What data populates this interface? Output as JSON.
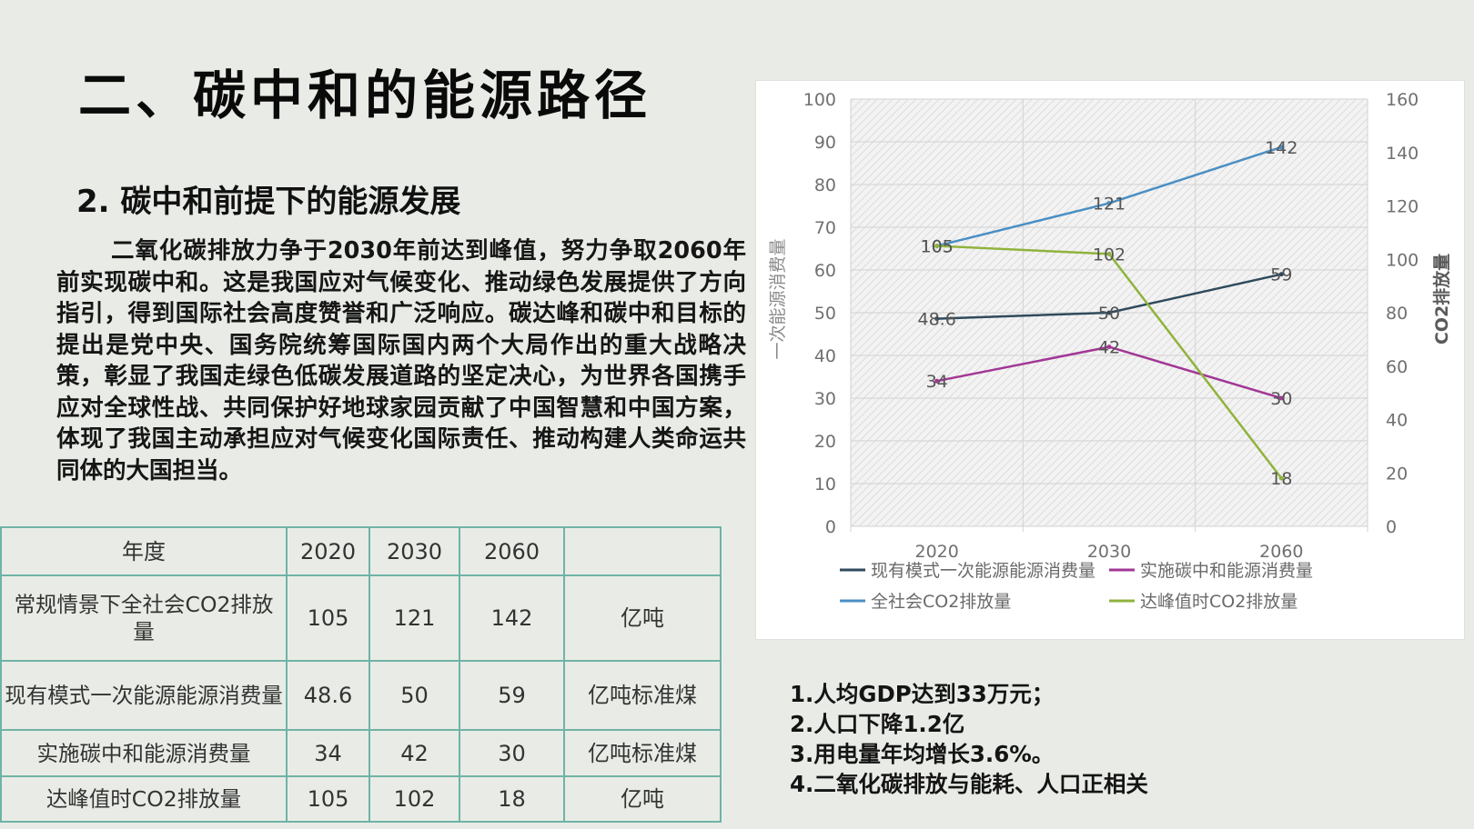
{
  "page": {
    "title": "二、碳中和的能源路径",
    "subtitle": "2. 碳中和前提下的能源发展",
    "paragraph": "二氧化碳排放力争于2030年前达到峰值，努力争取2060年前实现碳中和。这是我国应对气候变化、推动绿色发展提供了方向指引，得到国际社会高度赞誉和广泛响应。碳达峰和碳中和目标的提出是党中央、国务院统筹国际国内两个大局作出的重大战略决策，彰显了我国走绿色低碳发展道路的坚定决心，为世界各国携手应对全球性战、共同保护好地球家园贡献了中国智慧和中国方案，体现了我国主动承担应对气候变化国际责任、推动构建人类命运共同体的大国担当。"
  },
  "table": {
    "header": [
      "年度",
      "2020",
      "2030",
      "2060",
      ""
    ],
    "rows": [
      {
        "label": "常规情景下全社会CO2排放量",
        "values": [
          "105",
          "121",
          "142"
        ],
        "unit": "亿吨"
      },
      {
        "label": "现有模式一次能源能源消费量",
        "values": [
          "48.6",
          "50",
          "59"
        ],
        "unit": "亿吨标准煤"
      },
      {
        "label": "实施碳中和能源消费量",
        "values": [
          "34",
          "42",
          "30"
        ],
        "unit": "亿吨标准煤"
      },
      {
        "label": "达峰值时CO2排放量",
        "values": [
          "105",
          "102",
          "18"
        ],
        "unit": "亿吨"
      }
    ]
  },
  "notes": [
    "1.人均GDP达到33万元；",
    "2.人口下降1.2亿",
    "3.用电量年均增长3.6%。",
    "4.二氧化碳排放与能耗、人口正相关"
  ],
  "chart_data": {
    "type": "line",
    "categories": [
      "2020",
      "2030",
      "2060"
    ],
    "y_left": {
      "label": "一次能源消费量",
      "ticks": [
        0,
        10,
        20,
        30,
        40,
        50,
        60,
        70,
        80,
        90,
        100
      ],
      "range": [
        0,
        100
      ]
    },
    "y_right": {
      "label": "CO2排放量",
      "ticks": [
        0,
        20,
        40,
        60,
        80,
        100,
        120,
        140,
        160
      ],
      "range": [
        0,
        160
      ]
    },
    "series": [
      {
        "name": "现有模式一次能源能源消费量",
        "axis": "left",
        "color": "#2f4a5c",
        "values": [
          48.6,
          50,
          59
        ],
        "labels": [
          "48.6",
          "50",
          "59"
        ]
      },
      {
        "name": "实施碳中和能源消费量",
        "axis": "left",
        "color": "#a23795",
        "values": [
          34,
          42,
          30
        ],
        "labels": [
          "34",
          "42",
          "30"
        ]
      },
      {
        "name": "全社会CO2排放量",
        "axis": "right",
        "color": "#4a8fc4",
        "values": [
          105,
          121,
          142
        ],
        "labels": [
          "105",
          "121",
          "142"
        ]
      },
      {
        "name": "达峰值时CO2排放量",
        "axis": "right",
        "color": "#8fb33c",
        "values": [
          105,
          102,
          18
        ],
        "labels": [
          "105",
          "102",
          "18"
        ]
      }
    ],
    "legend_position": "bottom",
    "grid": true
  }
}
